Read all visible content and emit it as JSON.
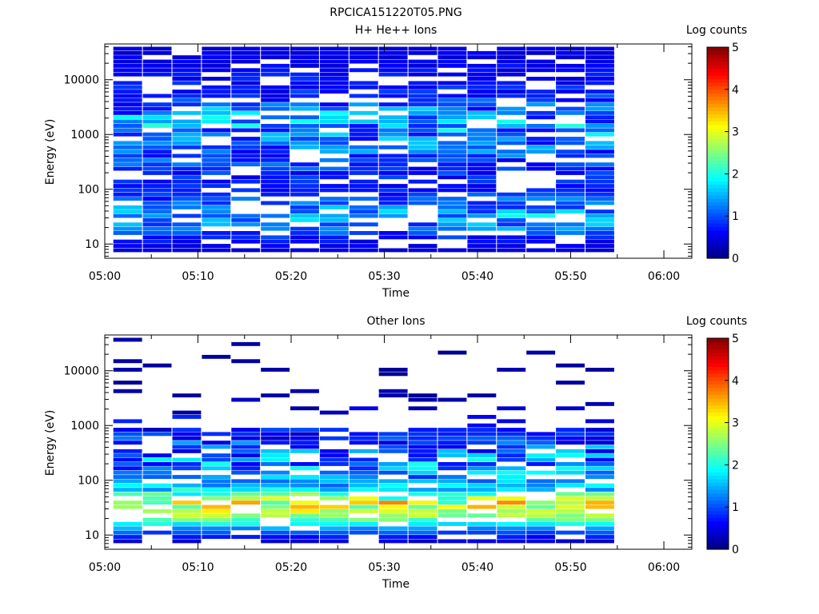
{
  "figure_title": "RPCICA151220T05.PNG",
  "chart_data": [
    {
      "type": "heatmap",
      "title": "H+ He++ Ions",
      "xlabel": "Time",
      "ylabel": "Energy (eV)",
      "y_scale": "log",
      "xlim": [
        "05:00",
        "06:03"
      ],
      "ylim": [
        5.5,
        45000
      ],
      "x_ticks": [
        "05:00",
        "05:10",
        "05:20",
        "05:30",
        "05:40",
        "05:50",
        "06:00"
      ],
      "y_ticks": [
        "10",
        "100",
        "1000",
        "10000"
      ],
      "colorbar": {
        "label": "Log counts",
        "range": [
          0,
          5
        ],
        "ticks": [
          "0",
          "1",
          "2",
          "3",
          "4",
          "5"
        ]
      },
      "time_columns": [
        "05:02:30",
        "05:05:40",
        "05:08:50",
        "05:12:00",
        "05:15:10",
        "05:18:20",
        "05:21:30",
        "05:24:40",
        "05:27:50",
        "05:31:00",
        "05:34:10",
        "05:37:20",
        "05:40:30",
        "05:43:40",
        "05:46:50",
        "05:50:00",
        "05:53:10"
      ],
      "profile": {
        "energy_eV": [
          8,
          12,
          20,
          30,
          45,
          70,
          100,
          200,
          400,
          800,
          1500,
          2500,
          5000,
          10000,
          25000,
          40000
        ],
        "median_log_counts": [
          0.4,
          0.5,
          0.7,
          0.9,
          0.8,
          0.6,
          0.5,
          0.5,
          0.5,
          0.6,
          0.7,
          0.6,
          0.5,
          0.4,
          0.4,
          0.3
        ],
        "peak_log_counts": [
          0.5,
          0.8,
          1.5,
          1.9,
          1.6,
          1.2,
          0.8,
          1.0,
          1.3,
          1.6,
          1.9,
          1.7,
          1.0,
          0.8,
          0.6,
          0.5
        ]
      },
      "grid": false
    },
    {
      "type": "heatmap",
      "title": "Other Ions",
      "xlabel": "Time",
      "ylabel": "Energy (eV)",
      "y_scale": "log",
      "xlim": [
        "05:00",
        "06:03"
      ],
      "ylim": [
        5.5,
        45000
      ],
      "x_ticks": [
        "05:00",
        "05:10",
        "05:20",
        "05:30",
        "05:40",
        "05:50",
        "06:00"
      ],
      "y_ticks": [
        "10",
        "100",
        "1000",
        "10000"
      ],
      "colorbar": {
        "label": "Log counts",
        "range": [
          0,
          5
        ],
        "ticks": [
          "0",
          "1",
          "2",
          "3",
          "4",
          "5"
        ]
      },
      "time_columns": [
        "05:02:30",
        "05:05:40",
        "05:08:50",
        "05:12:00",
        "05:15:10",
        "05:18:20",
        "05:21:30",
        "05:24:40",
        "05:27:50",
        "05:31:00",
        "05:34:10",
        "05:37:20",
        "05:40:30",
        "05:43:40",
        "05:46:50",
        "05:50:00",
        "05:53:10"
      ],
      "profile": {
        "energy_eV": [
          8,
          12,
          16,
          20,
          25,
          32,
          40,
          55,
          70,
          100,
          150,
          250,
          400,
          700,
          1200,
          3000,
          8000,
          12000
        ],
        "median_log_counts": [
          0.3,
          1.0,
          1.7,
          2.2,
          2.4,
          2.3,
          2.0,
          1.6,
          1.2,
          0.9,
          0.7,
          0.5,
          0.4,
          0.3,
          0.2,
          0.1,
          0.1,
          0.1
        ],
        "peak_log_counts": [
          0.5,
          1.3,
          2.1,
          2.6,
          3.0,
          3.3,
          3.5,
          2.5,
          1.9,
          1.6,
          1.8,
          1.8,
          1.5,
          0.9,
          0.8,
          0.3,
          0.2,
          0.2
        ]
      },
      "grid": false
    }
  ]
}
